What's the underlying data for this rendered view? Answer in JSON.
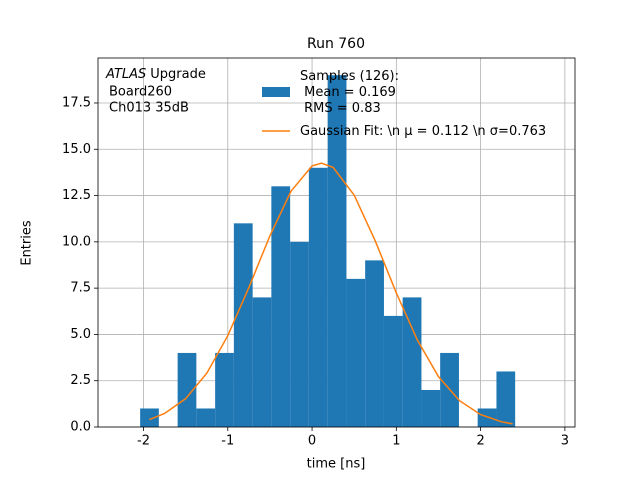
{
  "chart_data": {
    "type": "histogram",
    "title": "Run 760",
    "xlabel": "time [ns]",
    "ylabel": "Entries",
    "annotation": [
      "ATLAS",
      "Upgrade",
      "Board260",
      "Ch013 35dB"
    ],
    "xlim": [
      -2.54,
      3.12
    ],
    "ylim": [
      0,
      19.93
    ],
    "xticks": [
      -2,
      -1,
      0,
      1,
      2,
      3
    ],
    "yticks": [
      {
        "value": 0,
        "label": "0.0"
      },
      {
        "value": 2.5,
        "label": "2.5"
      },
      {
        "value": 5,
        "label": "5.0"
      },
      {
        "value": 7.5,
        "label": "7.5"
      },
      {
        "value": 10,
        "label": "10.0"
      },
      {
        "value": 12.5,
        "label": "12.5"
      },
      {
        "value": 15,
        "label": "15.0"
      },
      {
        "value": 17.5,
        "label": "17.5"
      }
    ],
    "grid": true,
    "series": [
      {
        "type": "bar",
        "name": [
          "Samples (126):",
          " Mean = 0.169",
          " RMS = 0.83"
        ],
        "color": "#1f77b4",
        "bins": [
          -2.04,
          -1.818,
          -1.595,
          -1.373,
          -1.15,
          -0.928,
          -0.705,
          -0.483,
          -0.26,
          -0.038,
          0.185,
          0.408,
          0.63,
          0.853,
          1.075,
          1.298,
          1.52,
          1.743,
          1.965,
          2.188,
          2.41
        ],
        "values": [
          1,
          0,
          4,
          1,
          4,
          11,
          7,
          13,
          10,
          14,
          19,
          8,
          9,
          6,
          7,
          2,
          4,
          0,
          1,
          3
        ]
      },
      {
        "type": "line",
        "name": [
          "Gaussian Fit: \\n μ = 0.112 \\n σ=0.763"
        ],
        "color": "#ff7f0e",
        "x": [
          -1.93,
          -1.75,
          -1.5,
          -1.25,
          -1.0,
          -0.75,
          -0.5,
          -0.25,
          0,
          0.112,
          0.25,
          0.5,
          0.75,
          1.0,
          1.25,
          1.5,
          1.75,
          2.0,
          2.25,
          2.38
        ],
        "values": [
          0.4,
          0.73,
          1.53,
          2.9,
          4.93,
          7.53,
          10.33,
          12.73,
          14.1,
          14.25,
          14.02,
          12.52,
          10.05,
          7.24,
          4.69,
          2.72,
          1.42,
          0.67,
          0.28,
          0.17
        ]
      }
    ]
  }
}
